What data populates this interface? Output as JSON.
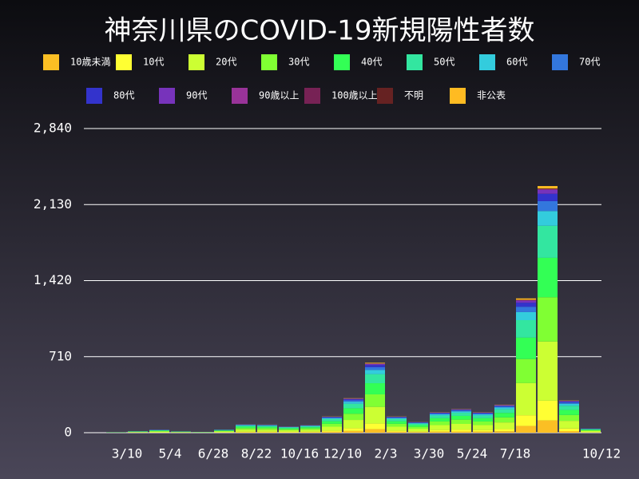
{
  "chart_data": {
    "type": "stacked_bar",
    "title": "神奈川県のCOVID-19新規陽性者数",
    "categories": [
      null,
      null,
      "3/10",
      null,
      "5/4",
      null,
      "6/28",
      null,
      "8/22",
      null,
      "10/16",
      null,
      "12/10",
      null,
      "2/3",
      null,
      "3/30",
      null,
      "5/24",
      null,
      "7/18",
      null,
      null,
      "10/12"
    ],
    "series": [
      {
        "name": "10歳未満",
        "color": "#fbbf24",
        "values": [
          0,
          0,
          1,
          1,
          1,
          0,
          2,
          4,
          4,
          3,
          4,
          8,
          16,
          33,
          8,
          5,
          10,
          11,
          10,
          13,
          63,
          115,
          15,
          2
        ]
      },
      {
        "name": "10代",
        "color": "#ffff33",
        "values": [
          0,
          0,
          1,
          2,
          1,
          1,
          2,
          6,
          6,
          5,
          6,
          12,
          26,
          52,
          12,
          8,
          15,
          18,
          15,
          21,
          100,
          184,
          24,
          3
        ]
      },
      {
        "name": "20代",
        "color": "#ccff33",
        "values": [
          0,
          1,
          4,
          7,
          3,
          2,
          7,
          19,
          18,
          14,
          17,
          36,
          77,
          156,
          36,
          24,
          46,
          53,
          46,
          62,
          300,
          552,
          72,
          10
        ]
      },
      {
        "name": "30代",
        "color": "#80ff33",
        "values": [
          0,
          1,
          3,
          5,
          2,
          1,
          5,
          14,
          14,
          10,
          13,
          27,
          58,
          117,
          27,
          18,
          34,
          40,
          34,
          47,
          225,
          414,
          54,
          7
        ]
      },
      {
        "name": "40代",
        "color": "#33ff55",
        "values": [
          0,
          1,
          2,
          4,
          2,
          1,
          5,
          13,
          12,
          9,
          11,
          24,
          51,
          104,
          24,
          16,
          30,
          35,
          30,
          42,
          200,
          368,
          48,
          6
        ]
      },
      {
        "name": "50代",
        "color": "#33e6a0",
        "values": [
          0,
          1,
          2,
          4,
          2,
          1,
          4,
          10,
          10,
          8,
          9,
          20,
          42,
          85,
          20,
          13,
          25,
          29,
          25,
          34,
          163,
          299,
          39,
          5
        ]
      },
      {
        "name": "60代",
        "color": "#33ccdd",
        "values": [
          0,
          0,
          1,
          2,
          1,
          1,
          2,
          5,
          5,
          3,
          4,
          9,
          19,
          39,
          9,
          6,
          11,
          13,
          11,
          16,
          75,
          138,
          18,
          2
        ]
      },
      {
        "name": "70代",
        "color": "#3377dd",
        "values": [
          0,
          0,
          1,
          1,
          0,
          0,
          1,
          3,
          3,
          2,
          3,
          6,
          13,
          26,
          6,
          4,
          8,
          9,
          8,
          10,
          50,
          92,
          12,
          2
        ]
      },
      {
        "name": "80代",
        "color": "#3333cc",
        "values": [
          0,
          0,
          0,
          1,
          0,
          0,
          1,
          2,
          2,
          2,
          2,
          5,
          10,
          20,
          5,
          3,
          6,
          7,
          6,
          8,
          38,
          69,
          9,
          1
        ]
      },
      {
        "name": "90代",
        "color": "#7733bb",
        "values": [
          0,
          0,
          0,
          1,
          0,
          0,
          0,
          1,
          1,
          1,
          1,
          2,
          5,
          10,
          2,
          2,
          3,
          3,
          3,
          4,
          19,
          35,
          5,
          1
        ]
      },
      {
        "name": "90歳以上",
        "color": "#993399",
        "values": [
          0,
          0,
          0,
          0,
          0,
          0,
          0,
          0,
          0,
          0,
          0,
          0,
          1,
          2,
          0,
          0,
          1,
          1,
          1,
          1,
          4,
          7,
          1,
          0
        ]
      },
      {
        "name": "100歳以上",
        "color": "#772255",
        "values": [
          0,
          0,
          0,
          0,
          0,
          0,
          0,
          0,
          0,
          0,
          0,
          0,
          0,
          1,
          0,
          0,
          0,
          0,
          0,
          0,
          1,
          2,
          0,
          0
        ]
      },
      {
        "name": "不明",
        "color": "#662222",
        "values": [
          0,
          0,
          0,
          0,
          0,
          0,
          0,
          0,
          0,
          0,
          0,
          0,
          1,
          1,
          0,
          0,
          0,
          0,
          0,
          0,
          3,
          5,
          0,
          0
        ]
      },
      {
        "name": "非公表",
        "color": "#ffbb22",
        "values": [
          0,
          0,
          0,
          0,
          0,
          0,
          0,
          1,
          1,
          1,
          1,
          2,
          3,
          7,
          2,
          1,
          2,
          2,
          2,
          3,
          13,
          23,
          3,
          0
        ]
      }
    ],
    "ylim": [
      0,
      2840
    ],
    "yticks": [
      0,
      710,
      {
        "value": 1420,
        "label": "1,420"
      },
      {
        "value": 2130,
        "label": "2,130"
      },
      {
        "value": 2840,
        "label": "2,840"
      }
    ],
    "grid": true
  }
}
